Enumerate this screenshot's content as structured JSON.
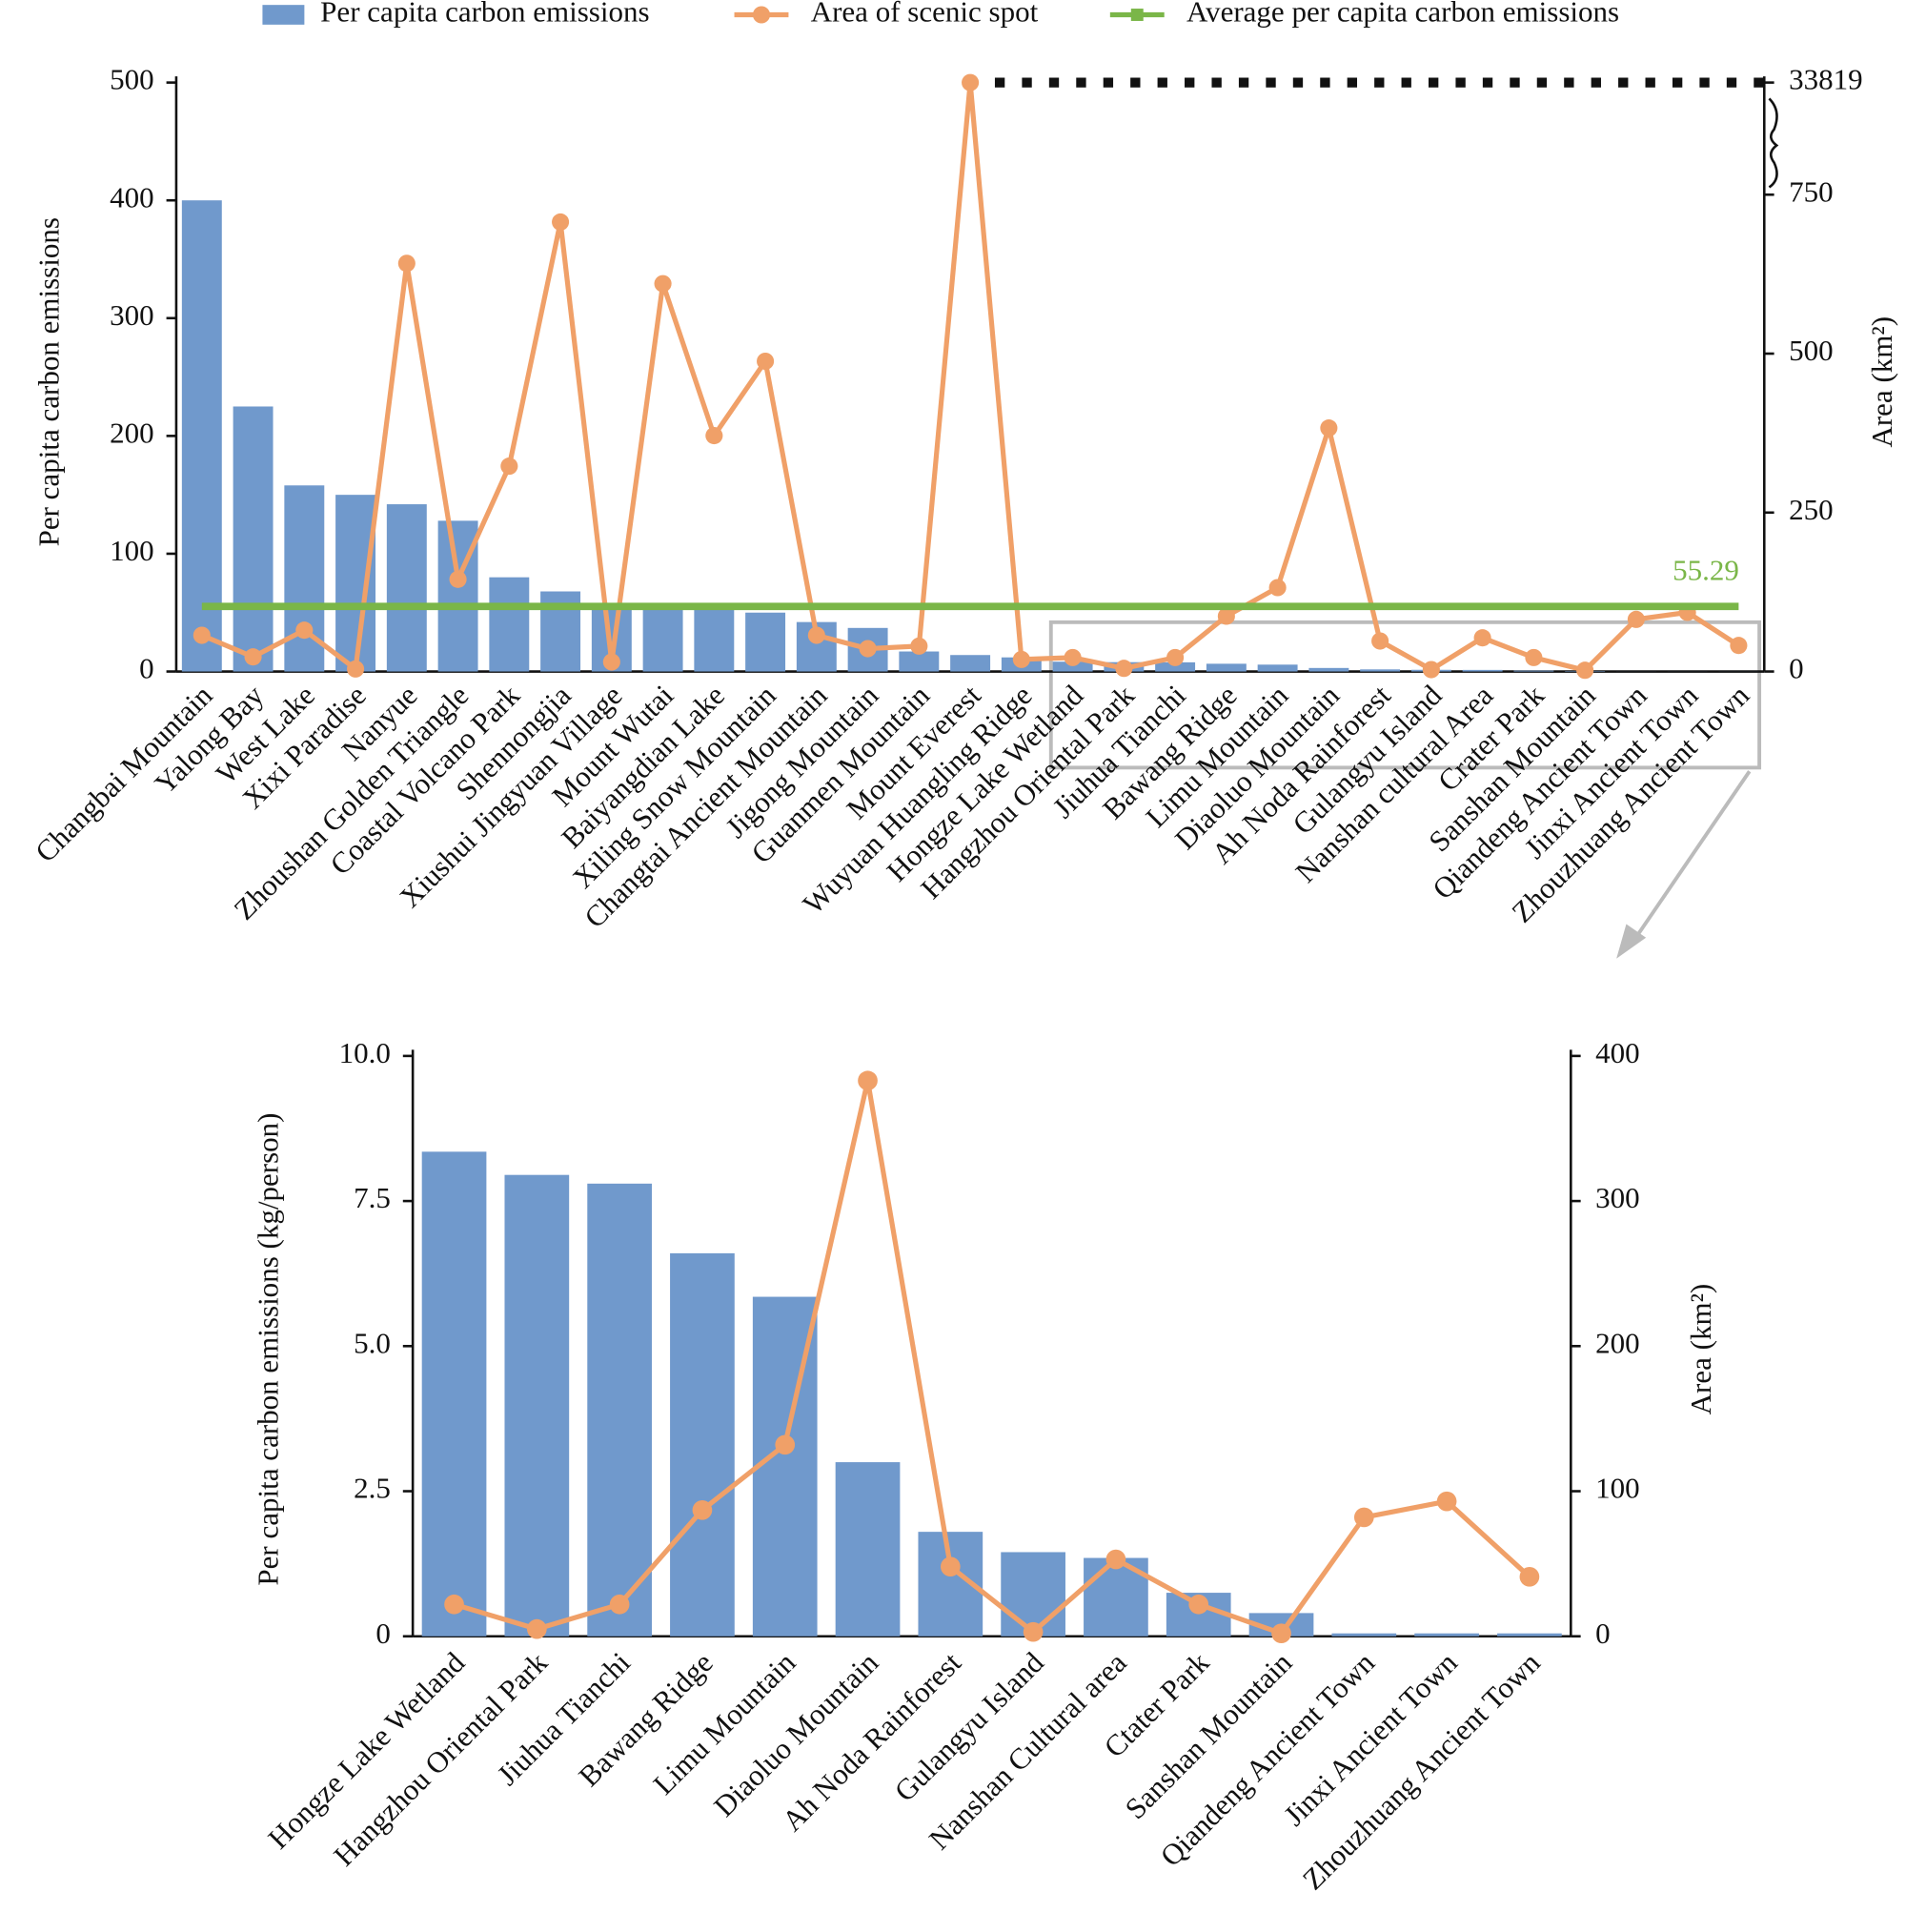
{
  "chart_data": [
    {
      "type": "bar_line",
      "categories": [
        "Changbai Mountain",
        "Yalong Bay",
        "West Lake",
        "Xixi Paradise",
        "Nanyue",
        "Zhoushan Golden Triangle",
        "Coastal Volcano Park",
        "Shennongjia",
        "Xiushui Jingyuan Village",
        "Mount Wutai",
        "Baiyangdian Lake",
        "Xiling Snow Mountain",
        "Changtai Ancient Mountain",
        "Jigong Mountain",
        "Guanmen Mountain",
        "Mount Everest",
        "Wuyuan Huangling Ridge",
        "Hongze Lake Wetland",
        "Hangzhou Oriental Park",
        "Jiuhua Tianchi",
        "Bawang Ridge",
        "Limu Mountain",
        "Diaoluo Mountain",
        "Ah Noda Rainforest",
        "Gulangyu Island",
        "Nanshan cultural Area",
        "Crater Park",
        "Sanshan Mountain",
        "Qiandeng Ancient Town",
        "Jinxi Ancient Town",
        "Zhouzhuang Ancient Town"
      ],
      "series": [
        {
          "name": "Per capita carbon emissions",
          "color": "#7099cc",
          "type": "bar",
          "values": [
            400,
            225,
            158,
            150,
            142,
            128,
            80,
            68,
            58,
            55,
            55,
            50,
            42,
            37,
            17,
            14,
            12,
            8.35,
            7.95,
            7.8,
            6.6,
            5.85,
            3.0,
            1.8,
            1.45,
            1.35,
            0.75,
            0.4,
            0.05,
            0.05,
            0.05
          ]
        },
        {
          "name": "Area of scenic spot",
          "color": "#f0a068",
          "type": "line",
          "axis": "y2",
          "values": [
            57,
            23,
            65,
            4,
            642,
            145,
            323,
            707,
            15,
            610,
            371,
            488,
            57,
            36,
            40,
            33819,
            19,
            22,
            5,
            22,
            87,
            132,
            383,
            48,
            3,
            53,
            22,
            2,
            82,
            93,
            41
          ]
        },
        {
          "name": "Average per capita carbon emissions",
          "color": "#7ab648",
          "type": "hline",
          "value": 55.29
        }
      ],
      "ylabel": "Per capita carbon emissions",
      "y2label": "Area (km²)",
      "ylim": [
        0,
        500
      ],
      "yticks": [
        0,
        100,
        200,
        300,
        400,
        500
      ],
      "y2lim": [
        0,
        33819
      ],
      "y2ticks": [
        0,
        250,
        500,
        750,
        33819
      ],
      "y2_axis_break": true
    },
    {
      "type": "bar_line",
      "categories": [
        "Hongze Lake Wetland",
        "Hangzhou Oriental Park",
        "Jiuhua Tianchi",
        "Bawang Ridge",
        "Limu Mountain",
        "Diaoluo Mountain",
        "Ah Noda Rainforest",
        "Gulangyu Island",
        "Nanshan Cultural area",
        "Ctater Park",
        "Sanshan Mountain",
        "Qiandeng Ancient Town",
        "Jinxi Ancient Town",
        "Zhouzhuang Ancient Town"
      ],
      "series": [
        {
          "color": "#7099cc",
          "type": "bar",
          "values": [
            8.35,
            7.95,
            7.8,
            6.6,
            5.85,
            3.0,
            1.8,
            1.45,
            1.35,
            0.75,
            0.4,
            0.05,
            0.05,
            0.05
          ]
        },
        {
          "color": "#f0a068",
          "type": "line",
          "axis": "y2",
          "values": [
            22,
            5,
            22,
            87,
            132,
            383,
            48,
            3,
            53,
            22,
            2,
            82,
            93,
            41
          ]
        }
      ],
      "ylabel": "Per capita carbon emissions (kg/person)",
      "y2label": "Area (km²)",
      "ylim": [
        0,
        10
      ],
      "yticks": [
        0,
        2.5,
        {
          "value": 5,
          "label": "5.0"
        },
        7.5,
        {
          "value": 10,
          "label": "10.0"
        }
      ],
      "y2lim": [
        0,
        400
      ],
      "y2ticks": [
        0,
        100,
        200,
        300,
        400
      ]
    }
  ]
}
